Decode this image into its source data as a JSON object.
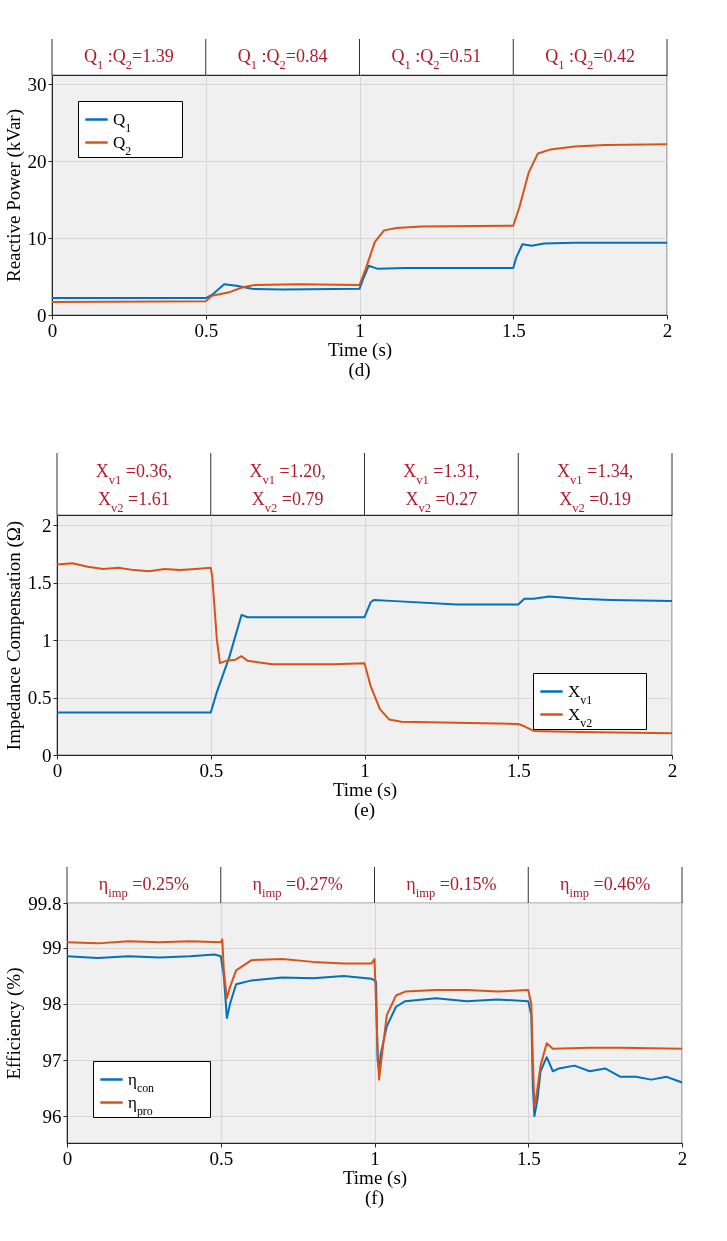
{
  "chart_data": [
    {
      "type": "line",
      "title": "(d)",
      "xlabel": "Time (s)",
      "ylabel": "Reactive Power (kVar)",
      "annotations": [
        "Q$_{1}$ :Q$_{2}$=1.39",
        "Q$_{1}$ :Q$_{2}$=0.84",
        "Q$_{1}$ :Q$_{2}$=0.51",
        "Q$_{1}$ :Q$_{2}$=0.42"
      ],
      "xlim": [
        0,
        2
      ],
      "xticks": [
        0,
        0.5,
        1,
        1.5,
        2
      ],
      "ylim": [
        0,
        31.2
      ],
      "yticks": [
        0,
        10,
        20,
        30
      ],
      "grid": true,
      "legend": "top left",
      "series": [
        {
          "name": "Q$_{1}$",
          "color": "#0072bd",
          "x": [
            0,
            0.5,
            0.52,
            0.56,
            0.6,
            0.65,
            0.75,
            1.0,
            1.01,
            1.03,
            1.06,
            1.15,
            1.5,
            1.51,
            1.53,
            1.56,
            1.6,
            1.7,
            2
          ],
          "values": [
            2.2,
            2.2,
            2.6,
            4.0,
            3.8,
            3.4,
            3.3,
            3.4,
            4.5,
            6.4,
            6.0,
            6.1,
            6.1,
            7.5,
            9.2,
            9.0,
            9.3,
            9.4,
            9.4
          ]
        },
        {
          "name": "Q$_{2}$",
          "color": "#d95319",
          "x": [
            0,
            0.5,
            0.52,
            0.58,
            0.62,
            0.66,
            0.8,
            1.0,
            1.02,
            1.05,
            1.08,
            1.12,
            1.2,
            1.5,
            1.52,
            1.55,
            1.58,
            1.62,
            1.7,
            1.8,
            2
          ],
          "values": [
            1.7,
            1.8,
            2.5,
            3.0,
            3.6,
            3.9,
            4.0,
            3.9,
            6,
            9.5,
            11.0,
            11.3,
            11.5,
            11.6,
            14,
            18.5,
            21.0,
            21.5,
            21.9,
            22.1,
            22.2
          ]
        }
      ]
    },
    {
      "type": "line",
      "title": "(e)",
      "xlabel": "Time (s)",
      "ylabel": "Impedance Compensation  (Ω)",
      "annotations": [
        "X$_{v1}$ =0.36,\nX$_{v2}$ =1.61",
        "X$_{v1}$ =1.20,\nX$_{v2}$ =0.79",
        "X$_{v1}$ =1.31,\nX$_{v2}$ =0.27",
        "X$_{v1}$ =1.34,\nX$_{v2}$ =0.19"
      ],
      "xlim": [
        0,
        2
      ],
      "xticks": [
        0,
        0.5,
        1,
        1.5,
        2
      ],
      "ylim": [
        0,
        2.09
      ],
      "yticks": [
        0,
        0.5,
        1,
        1.5,
        2
      ],
      "grid": true,
      "legend": "bottom right",
      "series": [
        {
          "name": "X$_{v1}$",
          "color": "#0072bd",
          "x": [
            0,
            0.5,
            0.52,
            0.56,
            0.6,
            0.62,
            0.8,
            1.0,
            1.02,
            1.03,
            1.1,
            1.3,
            1.5,
            1.52,
            1.55,
            1.6,
            1.7,
            1.8,
            2
          ],
          "values": [
            0.37,
            0.37,
            0.55,
            0.85,
            1.22,
            1.2,
            1.2,
            1.2,
            1.33,
            1.35,
            1.34,
            1.31,
            1.31,
            1.36,
            1.36,
            1.38,
            1.36,
            1.35,
            1.34
          ]
        },
        {
          "name": "X$_{v2}$",
          "color": "#d95319",
          "x": [
            0,
            0.05,
            0.1,
            0.15,
            0.2,
            0.25,
            0.3,
            0.35,
            0.4,
            0.45,
            0.5,
            0.505,
            0.52,
            0.53,
            0.55,
            0.58,
            0.6,
            0.62,
            0.7,
            0.9,
            1.0,
            1.02,
            1.05,
            1.08,
            1.12,
            1.3,
            1.5,
            1.52,
            1.55,
            1.7,
            2
          ],
          "values": [
            1.66,
            1.67,
            1.64,
            1.62,
            1.63,
            1.61,
            1.6,
            1.62,
            1.61,
            1.62,
            1.63,
            1.55,
            1.0,
            0.8,
            0.82,
            0.83,
            0.86,
            0.82,
            0.79,
            0.79,
            0.8,
            0.6,
            0.4,
            0.31,
            0.29,
            0.28,
            0.27,
            0.25,
            0.21,
            0.2,
            0.19
          ]
        }
      ]
    },
    {
      "type": "line",
      "title": "(f)",
      "xlabel": "Time (s)",
      "ylabel": "Efficiency (%)",
      "annotations": [
        "η$_{imp}$ =0.25%",
        "η$_{imp}$ =0.27%",
        "η$_{imp}$ =0.15%",
        "η$_{imp}$ =0.46%"
      ],
      "xlim": [
        0,
        2
      ],
      "xticks": [
        0,
        0.5,
        1,
        1.5,
        2
      ],
      "ylim": [
        95.52,
        99.8
      ],
      "yticks": [
        96,
        97,
        98,
        99,
        99.8
      ],
      "grid": true,
      "legend": "bottom left",
      "series": [
        {
          "name": "η$_{con}$",
          "color": "#0072bd",
          "x": [
            0,
            0.1,
            0.2,
            0.3,
            0.4,
            0.48,
            0.5,
            0.51,
            0.52,
            0.53,
            0.55,
            0.6,
            0.7,
            0.8,
            0.9,
            0.99,
            1.005,
            1.01,
            1.015,
            1.02,
            1.04,
            1.07,
            1.1,
            1.2,
            1.3,
            1.4,
            1.5,
            1.51,
            1.515,
            1.52,
            1.53,
            1.54,
            1.56,
            1.58,
            1.6,
            1.65,
            1.7,
            1.75,
            1.8,
            1.85,
            1.9,
            1.95,
            2
          ],
          "values": [
            98.85,
            98.82,
            98.85,
            98.83,
            98.85,
            98.88,
            98.85,
            98.5,
            97.75,
            98.0,
            98.35,
            98.42,
            98.47,
            98.46,
            98.5,
            98.45,
            98.4,
            97.0,
            96.8,
            97.1,
            97.6,
            97.95,
            98.05,
            98.1,
            98.05,
            98.08,
            98.05,
            97.8,
            96.5,
            96.0,
            96.3,
            96.8,
            97.05,
            96.8,
            96.85,
            96.9,
            96.8,
            96.85,
            96.7,
            96.7,
            96.65,
            96.7,
            96.6
          ]
        },
        {
          "name": "η$_{pro}$",
          "color": "#d95319",
          "x": [
            0,
            0.1,
            0.2,
            0.3,
            0.4,
            0.5,
            0.505,
            0.51,
            0.52,
            0.53,
            0.55,
            0.6,
            0.7,
            0.8,
            0.9,
            0.99,
            1.0,
            1.01,
            1.015,
            1.02,
            1.04,
            1.07,
            1.1,
            1.2,
            1.3,
            1.4,
            1.5,
            1.51,
            1.515,
            1.52,
            1.53,
            1.54,
            1.56,
            1.58,
            1.7,
            1.8,
            2
          ],
          "values": [
            99.1,
            99.08,
            99.12,
            99.1,
            99.12,
            99.1,
            99.15,
            98.6,
            98.1,
            98.3,
            98.6,
            98.78,
            98.8,
            98.75,
            98.72,
            98.72,
            98.8,
            97.2,
            96.65,
            96.9,
            97.8,
            98.15,
            98.22,
            98.25,
            98.25,
            98.22,
            98.25,
            98.0,
            97.0,
            96.15,
            96.5,
            96.9,
            97.3,
            97.2,
            97.22,
            97.22,
            97.2
          ]
        }
      ]
    }
  ]
}
